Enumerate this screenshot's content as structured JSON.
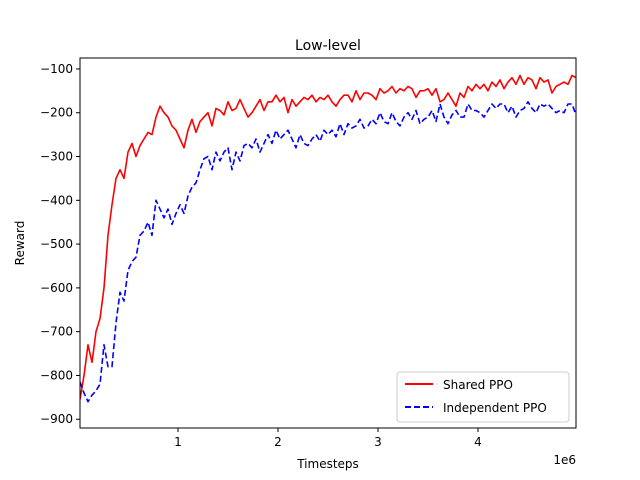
{
  "chart_data": {
    "type": "line",
    "title": "Low-level",
    "xlabel": "Timesteps",
    "ylabel": "Reward",
    "x_offset_label": "1e6",
    "xlim": [
      0.02,
      4.98
    ],
    "ylim": [
      -920,
      -75
    ],
    "xticks": [
      1,
      2,
      3,
      4
    ],
    "xtick_labels": [
      "1",
      "2",
      "3",
      "4"
    ],
    "yticks": [
      -900,
      -800,
      -700,
      -600,
      -500,
      -400,
      -300,
      -200,
      -100
    ],
    "ytick_labels": [
      "−900",
      "−800",
      "−700",
      "−600",
      "−500",
      "−400",
      "−300",
      "−200",
      "−100"
    ],
    "grid": false,
    "legend_position": "lower-right",
    "series": [
      {
        "name": "Shared PPO",
        "color": "#ff0000",
        "dash": "solid",
        "x": [
          0.02,
          0.06,
          0.1,
          0.14,
          0.18,
          0.22,
          0.26,
          0.3,
          0.34,
          0.38,
          0.42,
          0.46,
          0.5,
          0.54,
          0.58,
          0.62,
          0.66,
          0.7,
          0.74,
          0.78,
          0.82,
          0.86,
          0.9,
          0.94,
          0.98,
          1.02,
          1.06,
          1.1,
          1.14,
          1.18,
          1.22,
          1.26,
          1.3,
          1.34,
          1.38,
          1.42,
          1.46,
          1.5,
          1.54,
          1.58,
          1.62,
          1.66,
          1.7,
          1.74,
          1.78,
          1.82,
          1.86,
          1.9,
          1.94,
          1.98,
          2.02,
          2.06,
          2.1,
          2.14,
          2.18,
          2.22,
          2.26,
          2.3,
          2.34,
          2.38,
          2.42,
          2.46,
          2.5,
          2.54,
          2.58,
          2.62,
          2.66,
          2.7,
          2.74,
          2.78,
          2.82,
          2.86,
          2.9,
          2.94,
          2.98,
          3.02,
          3.06,
          3.1,
          3.14,
          3.18,
          3.22,
          3.26,
          3.3,
          3.34,
          3.38,
          3.42,
          3.46,
          3.5,
          3.54,
          3.58,
          3.62,
          3.66,
          3.7,
          3.74,
          3.78,
          3.82,
          3.86,
          3.9,
          3.94,
          3.98,
          4.02,
          4.06,
          4.1,
          4.14,
          4.18,
          4.22,
          4.26,
          4.3,
          4.34,
          4.38,
          4.42,
          4.46,
          4.5,
          4.54,
          4.58,
          4.62,
          4.66,
          4.7,
          4.74,
          4.78,
          4.82,
          4.86,
          4.9,
          4.94,
          4.98
        ],
        "y": [
          -855,
          -800,
          -730,
          -770,
          -700,
          -670,
          -600,
          -480,
          -410,
          -350,
          -330,
          -350,
          -290,
          -270,
          -300,
          -275,
          -260,
          -245,
          -250,
          -210,
          -185,
          -200,
          -210,
          -230,
          -240,
          -260,
          -280,
          -240,
          -215,
          -245,
          -220,
          -210,
          -200,
          -230,
          -190,
          -195,
          -205,
          -175,
          -195,
          -190,
          -170,
          -190,
          -210,
          -200,
          -185,
          -170,
          -195,
          -175,
          -175,
          -160,
          -175,
          -165,
          -200,
          -170,
          -185,
          -175,
          -165,
          -170,
          -160,
          -175,
          -165,
          -170,
          -160,
          -175,
          -185,
          -170,
          -160,
          -160,
          -175,
          -150,
          -170,
          -155,
          -155,
          -160,
          -170,
          -145,
          -155,
          -150,
          -140,
          -155,
          -145,
          -150,
          -140,
          -145,
          -165,
          -150,
          -150,
          -145,
          -160,
          -145,
          -175,
          -170,
          -155,
          -170,
          -185,
          -155,
          -165,
          -140,
          -150,
          -135,
          -145,
          -135,
          -150,
          -130,
          -140,
          -125,
          -145,
          -130,
          -120,
          -135,
          -115,
          -135,
          -120,
          -125,
          -145,
          -120,
          -130,
          -125,
          -155,
          -140,
          -135,
          -130,
          -135,
          -115,
          -120
        ]
      },
      {
        "name": "Independent PPO",
        "color": "#0000ff",
        "dash": "dashed",
        "x": [
          0.02,
          0.06,
          0.1,
          0.14,
          0.18,
          0.22,
          0.26,
          0.3,
          0.34,
          0.38,
          0.42,
          0.46,
          0.5,
          0.54,
          0.58,
          0.62,
          0.66,
          0.7,
          0.74,
          0.78,
          0.82,
          0.86,
          0.9,
          0.94,
          0.98,
          1.02,
          1.06,
          1.1,
          1.14,
          1.18,
          1.22,
          1.26,
          1.3,
          1.34,
          1.38,
          1.42,
          1.46,
          1.5,
          1.54,
          1.58,
          1.62,
          1.66,
          1.7,
          1.74,
          1.78,
          1.82,
          1.86,
          1.9,
          1.94,
          1.98,
          2.02,
          2.06,
          2.1,
          2.14,
          2.18,
          2.22,
          2.26,
          2.3,
          2.34,
          2.38,
          2.42,
          2.46,
          2.5,
          2.54,
          2.58,
          2.62,
          2.66,
          2.7,
          2.74,
          2.78,
          2.82,
          2.86,
          2.9,
          2.94,
          2.98,
          3.02,
          3.06,
          3.1,
          3.14,
          3.18,
          3.22,
          3.26,
          3.3,
          3.34,
          3.38,
          3.42,
          3.46,
          3.5,
          3.54,
          3.58,
          3.62,
          3.66,
          3.7,
          3.74,
          3.78,
          3.82,
          3.86,
          3.9,
          3.94,
          3.98,
          4.02,
          4.06,
          4.1,
          4.14,
          4.18,
          4.22,
          4.26,
          4.3,
          4.34,
          4.38,
          4.42,
          4.46,
          4.5,
          4.54,
          4.58,
          4.62,
          4.66,
          4.7,
          4.74,
          4.78,
          4.82,
          4.86,
          4.9,
          4.94,
          4.98
        ],
        "y": [
          -815,
          -840,
          -860,
          -845,
          -835,
          -820,
          -730,
          -780,
          -780,
          -680,
          -610,
          -630,
          -560,
          -540,
          -530,
          -480,
          -470,
          -450,
          -480,
          -400,
          -420,
          -440,
          -420,
          -455,
          -430,
          -410,
          -430,
          -390,
          -370,
          -360,
          -330,
          -305,
          -300,
          -330,
          -290,
          -310,
          -290,
          -280,
          -330,
          -290,
          -310,
          -275,
          -270,
          -280,
          -260,
          -290,
          -270,
          -250,
          -270,
          -240,
          -260,
          -250,
          -240,
          -260,
          -280,
          -250,
          -270,
          -275,
          -260,
          -250,
          -265,
          -240,
          -250,
          -240,
          -255,
          -225,
          -250,
          -225,
          -235,
          -230,
          -215,
          -235,
          -230,
          -215,
          -225,
          -200,
          -220,
          -225,
          -200,
          -220,
          -230,
          -210,
          -200,
          -215,
          -195,
          -225,
          -215,
          -210,
          -195,
          -220,
          -180,
          -210,
          -225,
          -205,
          -195,
          -210,
          -210,
          -180,
          -195,
          -195,
          -200,
          -210,
          -195,
          -180,
          -190,
          -180,
          -180,
          -200,
          -185,
          -210,
          -195,
          -190,
          -175,
          -190,
          -200,
          -180,
          -185,
          -180,
          -190,
          -200,
          -195,
          -200,
          -180,
          -180,
          -205
        ]
      }
    ]
  }
}
